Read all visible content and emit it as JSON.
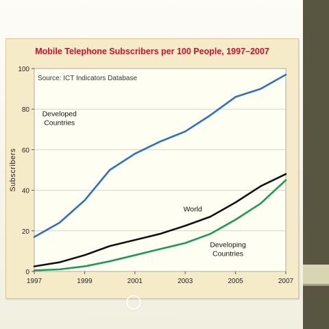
{
  "colors": {
    "developed": "#2a72c0",
    "world": "#111111",
    "developing": "#1a9a55",
    "title": "#c8102e",
    "plot_bg": "#fffef3",
    "card_bg": "#f6ebc8",
    "sidebar": "#585640"
  },
  "chart_data": {
    "type": "line",
    "title": "Mobile Telephone Subscribers per 100 People, 1997–2007",
    "source": "Source: ICT Indicators Database",
    "xlabel": "",
    "ylabel": "Subscribers",
    "xlim": [
      1997,
      2007
    ],
    "ylim": [
      0,
      100
    ],
    "x_ticks": [
      "1997",
      "1999",
      "2001",
      "2003",
      "2005",
      "2007"
    ],
    "y_ticks": [
      "0",
      "20",
      "40",
      "60",
      "80",
      "100"
    ],
    "grid": "horizontal",
    "x": [
      1997,
      1998,
      1999,
      2000,
      2001,
      2002,
      2003,
      2004,
      2005,
      2006,
      2007
    ],
    "series": [
      {
        "name": "Developed Countries",
        "label_lines": [
          "Developed",
          "Countries"
        ],
        "color_key": "developed",
        "values": [
          17,
          24,
          35,
          50,
          58,
          64,
          69,
          77,
          86,
          90,
          97
        ]
      },
      {
        "name": "World",
        "label_lines": [
          "World"
        ],
        "color_key": "world",
        "values": [
          2.5,
          4.5,
          8,
          12.5,
          15.5,
          18.5,
          22.5,
          27,
          34,
          42,
          48
        ]
      },
      {
        "name": "Developing Countries",
        "label_lines": [
          "Developing",
          "Countries"
        ],
        "color_key": "developing",
        "values": [
          0.5,
          1,
          2.5,
          5,
          8,
          11,
          14,
          18.5,
          25.5,
          33.5,
          45
        ]
      }
    ]
  }
}
